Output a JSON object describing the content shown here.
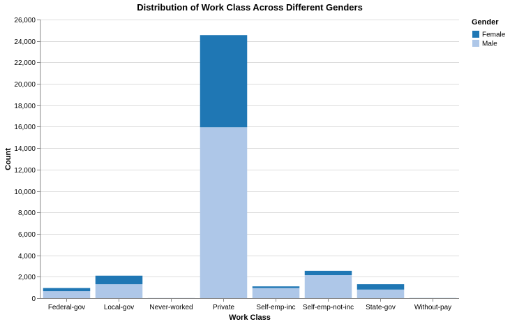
{
  "chart_data": {
    "type": "bar",
    "stacked": true,
    "title": "Distribution of Work Class Across Different Genders",
    "xlabel": "Work Class",
    "ylabel": "Count",
    "ylim": [
      0,
      26000
    ],
    "y_ticks": [
      0,
      2000,
      4000,
      6000,
      8000,
      10000,
      12000,
      14000,
      16000,
      18000,
      20000,
      22000,
      24000,
      26000
    ],
    "categories": [
      "Federal-gov",
      "Local-gov",
      "Never-worked",
      "Private",
      "Self-emp-inc",
      "Self-emp-not-inc",
      "State-gov",
      "Without-pay"
    ],
    "series": [
      {
        "name": "Male",
        "color": "#aec7e8",
        "values": [
          650,
          1300,
          7,
          15950,
          950,
          2150,
          800,
          12
        ]
      },
      {
        "name": "Female",
        "color": "#1f77b4",
        "values": [
          300,
          800,
          3,
          8600,
          150,
          400,
          500,
          5
        ]
      }
    ],
    "grid": true,
    "legend": {
      "title": "Gender",
      "placement": "top-right",
      "entries": [
        {
          "label": "Female",
          "color": "#1f77b4"
        },
        {
          "label": "Male",
          "color": "#aec7e8"
        }
      ]
    }
  }
}
